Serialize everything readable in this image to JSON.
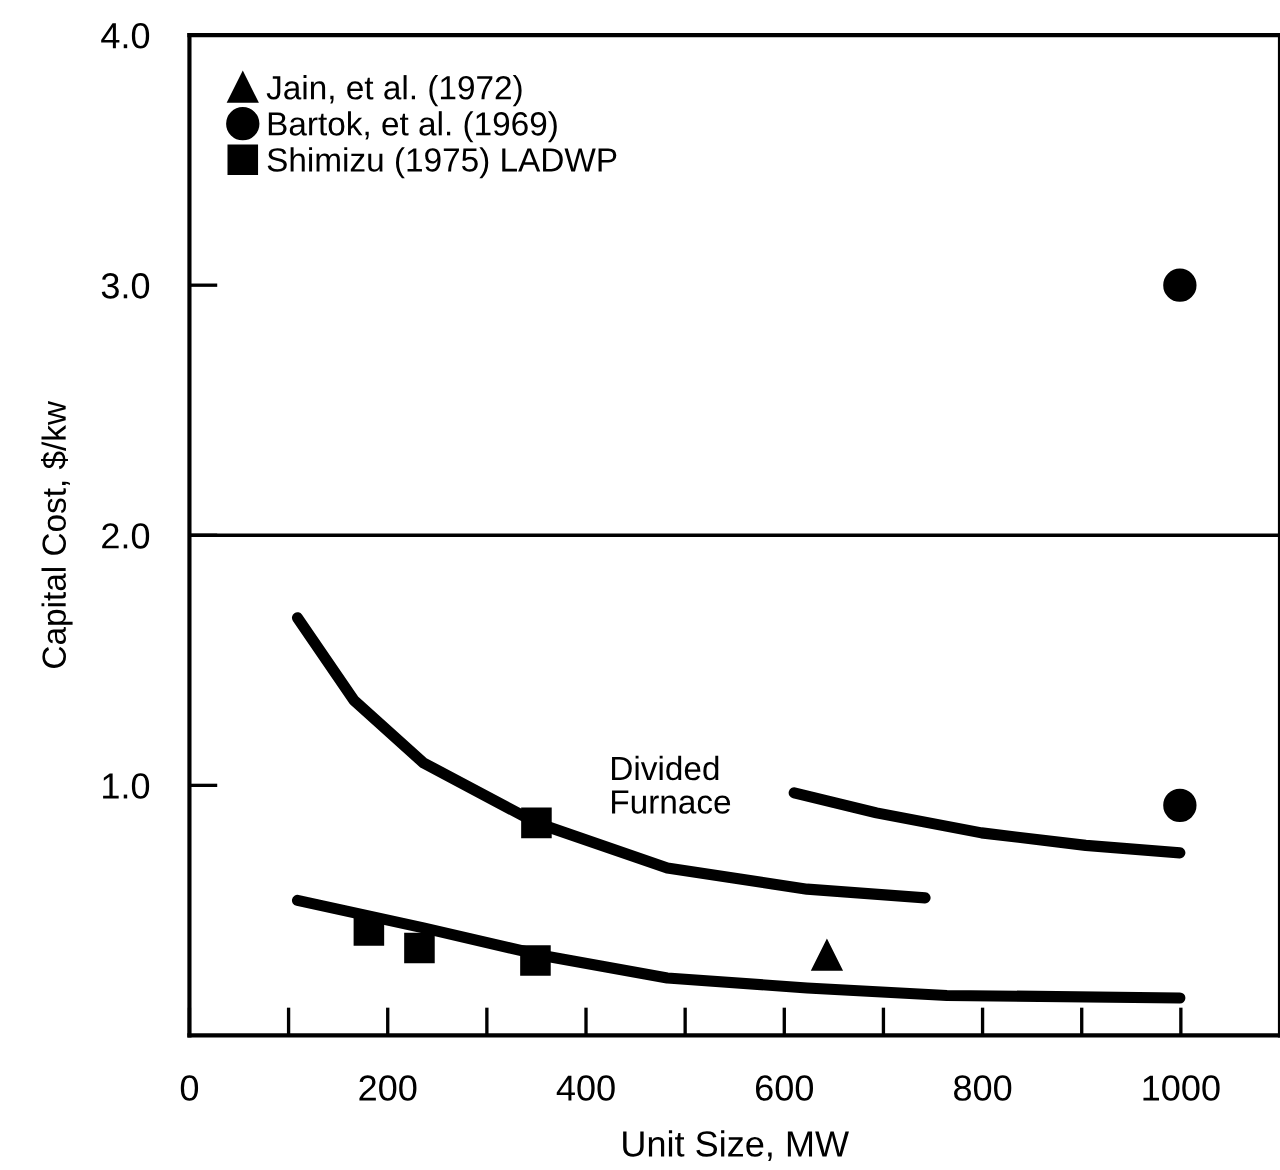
{
  "chart_data": {
    "type": "scatter",
    "xlabel": "Unit Size, MW",
    "ylabel": "Capital Cost, $/kw",
    "xlim": [
      0,
      1100
    ],
    "ylim": [
      0,
      4.0
    ],
    "xticks": [
      0,
      {
        "value": 100,
        "label": null
      },
      200,
      {
        "value": 300,
        "label": null
      },
      400,
      {
        "value": 500,
        "label": null
      },
      600,
      {
        "value": 700,
        "label": null
      },
      800,
      {
        "value": 900,
        "label": null
      },
      1000
    ],
    "yticks": [
      {
        "value": 1.0,
        "label": "1.0"
      },
      {
        "value": 2.0,
        "label": "2.0"
      },
      {
        "value": 3.0,
        "label": "3.0"
      },
      {
        "value": 4.0,
        "label": "4.0"
      }
    ],
    "legend": "top left",
    "grid": false,
    "ref_lines": [
      {
        "axis": "y",
        "value": 2.0,
        "label": null,
        "color": "#000000"
      }
    ],
    "annotations": [
      "Divided\nFurnace"
    ],
    "series": [
      {
        "name": "Jain, et al. (1972)",
        "marker": "triangle",
        "color": "#000000",
        "x": [
          643
        ],
        "values": [
          0.32
        ]
      },
      {
        "name": "Bartok, et al. (1969)",
        "marker": "circle",
        "color": "#000000",
        "x": [
          999,
          999
        ],
        "values": [
          3.0,
          0.92
        ]
      },
      {
        "name": "Shimizu (1975) LADWP",
        "marker": "square",
        "color": "#000000",
        "x": [
          181,
          232,
          349,
          350
        ],
        "values": [
          0.42,
          0.35,
          0.3,
          0.85
        ]
      },
      {
        "type": "line",
        "marker": "none",
        "color": "#000000",
        "x": [
          109,
          166,
          236,
          350,
          482,
          623,
          742
        ],
        "values": [
          1.67,
          1.34,
          1.09,
          0.85,
          0.67,
          0.585,
          0.55
        ]
      },
      {
        "type": "line",
        "marker": "none",
        "color": "#000000",
        "x": [
          610,
          693,
          799,
          904,
          999
        ],
        "values": [
          0.97,
          0.89,
          0.81,
          0.76,
          0.73
        ]
      },
      {
        "type": "line",
        "marker": "none",
        "color": "#000000",
        "x": [
          109,
          236,
          356,
          482,
          623,
          764,
          999
        ],
        "values": [
          0.54,
          0.43,
          0.32,
          0.23,
          0.19,
          0.16,
          0.15
        ]
      }
    ]
  }
}
